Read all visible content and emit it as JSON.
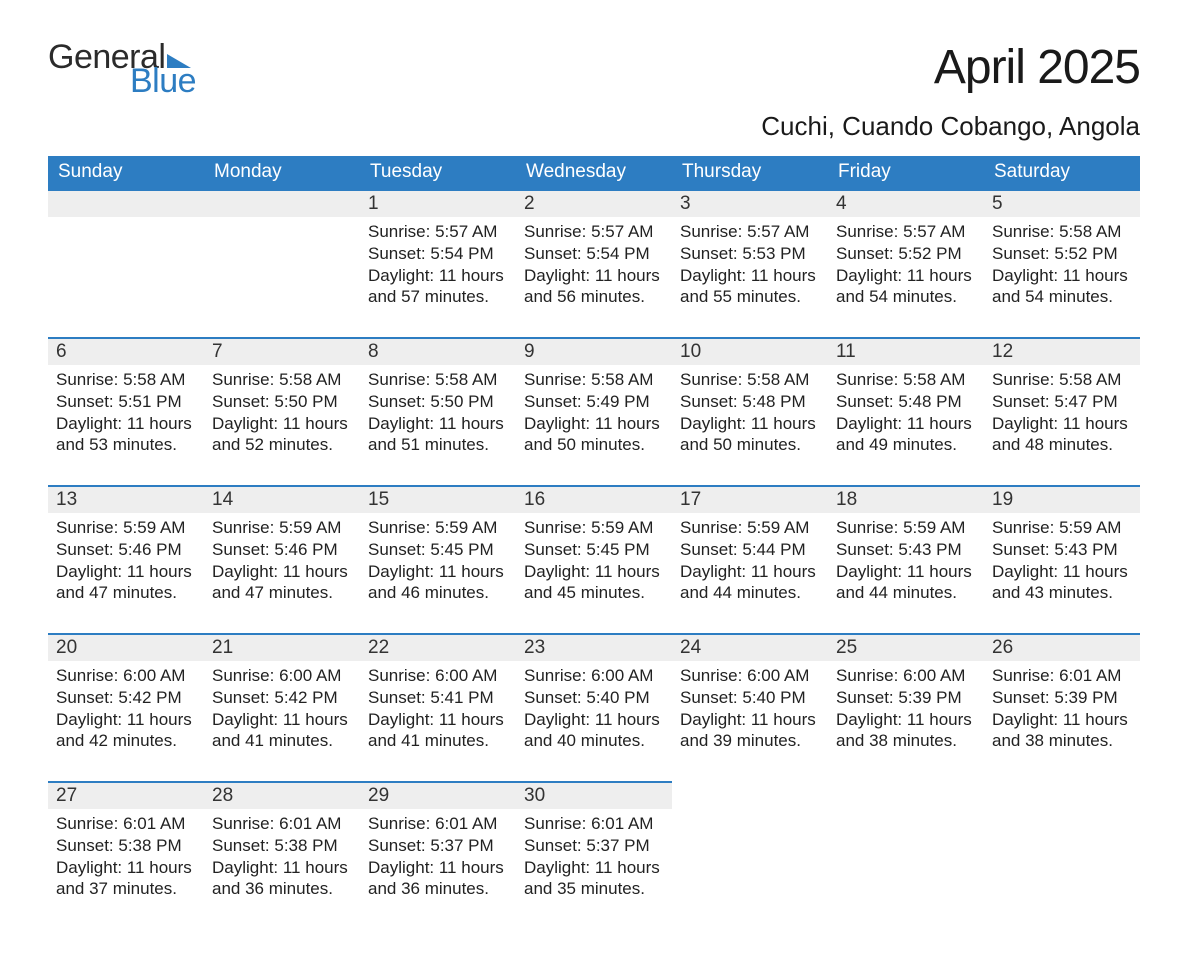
{
  "logo": {
    "word1": "General",
    "word2": "Blue",
    "word1_color": "#2b2b2b",
    "word2_color": "#2d7dc2",
    "flag_color": "#2d7dc2"
  },
  "title": "April 2025",
  "location": "Cuchi, Cuando Cobango, Angola",
  "colors": {
    "header_bg": "#2d7dc2",
    "header_text": "#ffffff",
    "daybar_bg": "#eeeeee",
    "daybar_border": "#2d7dc2",
    "body_text": "#212121",
    "page_bg": "#ffffff"
  },
  "typography": {
    "title_fontsize": 48,
    "location_fontsize": 26,
    "header_fontsize": 19,
    "daynum_fontsize": 19,
    "body_fontsize": 17,
    "logo_fontsize": 34
  },
  "calendar": {
    "type": "table",
    "columns": [
      "Sunday",
      "Monday",
      "Tuesday",
      "Wednesday",
      "Thursday",
      "Friday",
      "Saturday"
    ],
    "weeks": [
      [
        null,
        null,
        {
          "n": "1",
          "sunrise": "5:57 AM",
          "sunset": "5:54 PM",
          "daylight": "11 hours and 57 minutes."
        },
        {
          "n": "2",
          "sunrise": "5:57 AM",
          "sunset": "5:54 PM",
          "daylight": "11 hours and 56 minutes."
        },
        {
          "n": "3",
          "sunrise": "5:57 AM",
          "sunset": "5:53 PM",
          "daylight": "11 hours and 55 minutes."
        },
        {
          "n": "4",
          "sunrise": "5:57 AM",
          "sunset": "5:52 PM",
          "daylight": "11 hours and 54 minutes."
        },
        {
          "n": "5",
          "sunrise": "5:58 AM",
          "sunset": "5:52 PM",
          "daylight": "11 hours and 54 minutes."
        }
      ],
      [
        {
          "n": "6",
          "sunrise": "5:58 AM",
          "sunset": "5:51 PM",
          "daylight": "11 hours and 53 minutes."
        },
        {
          "n": "7",
          "sunrise": "5:58 AM",
          "sunset": "5:50 PM",
          "daylight": "11 hours and 52 minutes."
        },
        {
          "n": "8",
          "sunrise": "5:58 AM",
          "sunset": "5:50 PM",
          "daylight": "11 hours and 51 minutes."
        },
        {
          "n": "9",
          "sunrise": "5:58 AM",
          "sunset": "5:49 PM",
          "daylight": "11 hours and 50 minutes."
        },
        {
          "n": "10",
          "sunrise": "5:58 AM",
          "sunset": "5:48 PM",
          "daylight": "11 hours and 50 minutes."
        },
        {
          "n": "11",
          "sunrise": "5:58 AM",
          "sunset": "5:48 PM",
          "daylight": "11 hours and 49 minutes."
        },
        {
          "n": "12",
          "sunrise": "5:58 AM",
          "sunset": "5:47 PM",
          "daylight": "11 hours and 48 minutes."
        }
      ],
      [
        {
          "n": "13",
          "sunrise": "5:59 AM",
          "sunset": "5:46 PM",
          "daylight": "11 hours and 47 minutes."
        },
        {
          "n": "14",
          "sunrise": "5:59 AM",
          "sunset": "5:46 PM",
          "daylight": "11 hours and 47 minutes."
        },
        {
          "n": "15",
          "sunrise": "5:59 AM",
          "sunset": "5:45 PM",
          "daylight": "11 hours and 46 minutes."
        },
        {
          "n": "16",
          "sunrise": "5:59 AM",
          "sunset": "5:45 PM",
          "daylight": "11 hours and 45 minutes."
        },
        {
          "n": "17",
          "sunrise": "5:59 AM",
          "sunset": "5:44 PM",
          "daylight": "11 hours and 44 minutes."
        },
        {
          "n": "18",
          "sunrise": "5:59 AM",
          "sunset": "5:43 PM",
          "daylight": "11 hours and 44 minutes."
        },
        {
          "n": "19",
          "sunrise": "5:59 AM",
          "sunset": "5:43 PM",
          "daylight": "11 hours and 43 minutes."
        }
      ],
      [
        {
          "n": "20",
          "sunrise": "6:00 AM",
          "sunset": "5:42 PM",
          "daylight": "11 hours and 42 minutes."
        },
        {
          "n": "21",
          "sunrise": "6:00 AM",
          "sunset": "5:42 PM",
          "daylight": "11 hours and 41 minutes."
        },
        {
          "n": "22",
          "sunrise": "6:00 AM",
          "sunset": "5:41 PM",
          "daylight": "11 hours and 41 minutes."
        },
        {
          "n": "23",
          "sunrise": "6:00 AM",
          "sunset": "5:40 PM",
          "daylight": "11 hours and 40 minutes."
        },
        {
          "n": "24",
          "sunrise": "6:00 AM",
          "sunset": "5:40 PM",
          "daylight": "11 hours and 39 minutes."
        },
        {
          "n": "25",
          "sunrise": "6:00 AM",
          "sunset": "5:39 PM",
          "daylight": "11 hours and 38 minutes."
        },
        {
          "n": "26",
          "sunrise": "6:01 AM",
          "sunset": "5:39 PM",
          "daylight": "11 hours and 38 minutes."
        }
      ],
      [
        {
          "n": "27",
          "sunrise": "6:01 AM",
          "sunset": "5:38 PM",
          "daylight": "11 hours and 37 minutes."
        },
        {
          "n": "28",
          "sunrise": "6:01 AM",
          "sunset": "5:38 PM",
          "daylight": "11 hours and 36 minutes."
        },
        {
          "n": "29",
          "sunrise": "6:01 AM",
          "sunset": "5:37 PM",
          "daylight": "11 hours and 36 minutes."
        },
        {
          "n": "30",
          "sunrise": "6:01 AM",
          "sunset": "5:37 PM",
          "daylight": "11 hours and 35 minutes."
        },
        null,
        null,
        null
      ]
    ],
    "labels": {
      "sunrise": "Sunrise:",
      "sunset": "Sunset:",
      "daylight": "Daylight:"
    }
  }
}
